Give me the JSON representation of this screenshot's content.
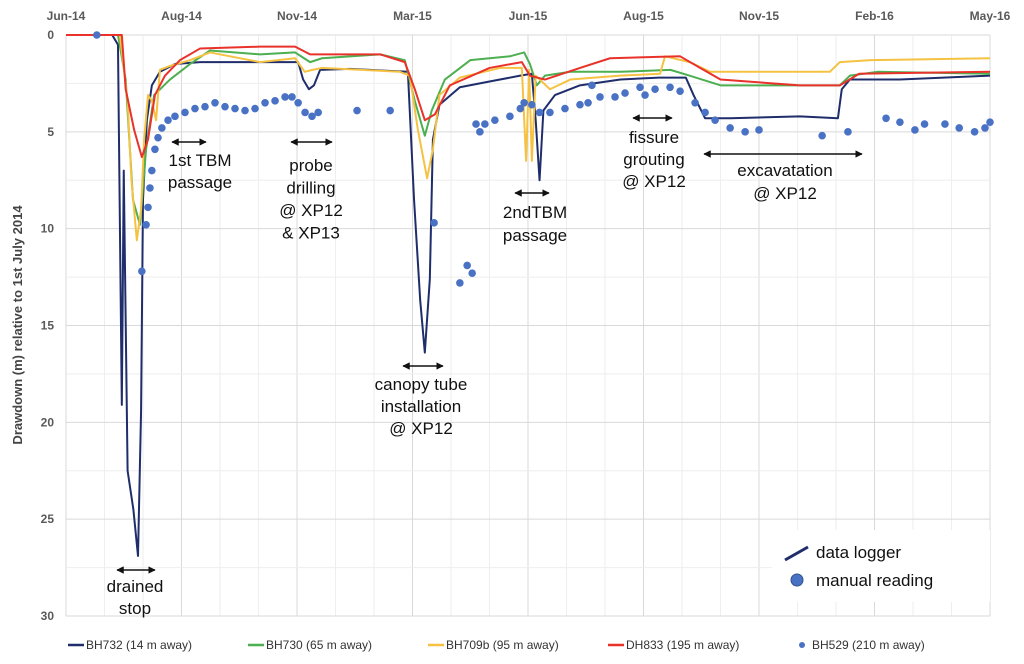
{
  "chart_data": {
    "type": "line",
    "ylabel": "Drawdown (m) relative to 1st July 2014",
    "ylim": [
      0,
      30
    ],
    "y_inverted": true,
    "yticks": [
      "0",
      "5",
      "10",
      "15",
      "20",
      "25",
      "30"
    ],
    "xlim": [
      0,
      24
    ],
    "xticks": [
      {
        "x": 0,
        "label": "Jun-14"
      },
      {
        "x": 3,
        "label": "Aug-14"
      },
      {
        "x": 6,
        "label": "Nov-14"
      },
      {
        "x": 9,
        "label": "Mar-15"
      },
      {
        "x": 12,
        "label": "Jun-15"
      },
      {
        "x": 15,
        "label": "Aug-15"
      },
      {
        "x": 18,
        "label": "Nov-15"
      },
      {
        "x": 21,
        "label": "Feb-16"
      },
      {
        "x": 24,
        "label": "May-16"
      }
    ],
    "grid": true,
    "series": [
      {
        "name": "BH732 (14 m away)",
        "color": "#1f2d6b",
        "kind": "line",
        "points": [
          [
            0,
            0
          ],
          [
            1.2,
            0
          ],
          [
            1.35,
            0.5
          ],
          [
            1.45,
            19.1
          ],
          [
            1.5,
            7
          ],
          [
            1.6,
            22.5
          ],
          [
            1.75,
            24.5
          ],
          [
            1.87,
            26.9
          ],
          [
            1.95,
            19.4
          ],
          [
            2.0,
            8.5
          ],
          [
            2.1,
            4.4
          ],
          [
            2.23,
            2.6
          ],
          [
            2.44,
            1.9
          ],
          [
            2.83,
            1.5
          ],
          [
            3.48,
            1.4
          ],
          [
            4.78,
            1.4
          ],
          [
            6.03,
            1.4
          ],
          [
            6.16,
            2.3
          ],
          [
            6.31,
            2.8
          ],
          [
            6.44,
            2.6
          ],
          [
            6.6,
            1.8
          ],
          [
            7.38,
            1.75
          ],
          [
            8.88,
            1.9
          ],
          [
            9.04,
            8.5
          ],
          [
            9.2,
            13.7
          ],
          [
            9.32,
            16.4
          ],
          [
            9.45,
            12.6
          ],
          [
            9.53,
            5.4
          ],
          [
            9.7,
            3.6
          ],
          [
            10.23,
            2.7
          ],
          [
            11.0,
            2.4
          ],
          [
            11.8,
            2.1
          ],
          [
            12.1,
            2.0
          ],
          [
            12.2,
            4.4
          ],
          [
            12.3,
            7.5
          ],
          [
            12.4,
            3.9
          ],
          [
            12.7,
            3.1
          ],
          [
            13.35,
            2.6
          ],
          [
            14.4,
            2.3
          ],
          [
            15.4,
            2.2
          ],
          [
            16.1,
            2.2
          ],
          [
            16.3,
            3.1
          ],
          [
            16.6,
            4.3
          ],
          [
            17.25,
            4.3
          ],
          [
            19.06,
            4.2
          ],
          [
            20.05,
            4.3
          ],
          [
            20.15,
            2.8
          ],
          [
            20.36,
            2.3
          ],
          [
            21.66,
            2.3
          ],
          [
            24,
            2.1
          ]
        ]
      },
      {
        "name": "BH730 (65 m away)",
        "color": "#4caf50",
        "kind": "line",
        "points": [
          [
            0,
            0
          ],
          [
            1.35,
            0
          ],
          [
            1.55,
            2.3
          ],
          [
            1.74,
            8.5
          ],
          [
            1.92,
            9.8
          ],
          [
            2.08,
            5.9
          ],
          [
            2.29,
            3.1
          ],
          [
            2.7,
            2.3
          ],
          [
            3.22,
            1.5
          ],
          [
            3.74,
            0.8
          ],
          [
            5.04,
            1.0
          ],
          [
            5.95,
            0.9
          ],
          [
            6.34,
            1.4
          ],
          [
            6.65,
            1.2
          ],
          [
            8.16,
            1.0
          ],
          [
            8.8,
            1.3
          ],
          [
            9.06,
            3.4
          ],
          [
            9.32,
            5.2
          ],
          [
            9.5,
            3.9
          ],
          [
            9.84,
            2.3
          ],
          [
            10.5,
            1.3
          ],
          [
            11.53,
            1.1
          ],
          [
            11.9,
            0.9
          ],
          [
            12.05,
            1.5
          ],
          [
            12.23,
            2.6
          ],
          [
            12.44,
            2.1
          ],
          [
            13.1,
            1.9
          ],
          [
            14.4,
            1.9
          ],
          [
            15.7,
            1.8
          ],
          [
            16.2,
            2.1
          ],
          [
            17.0,
            2.6
          ],
          [
            19.06,
            2.6
          ],
          [
            20.1,
            2.6
          ],
          [
            20.36,
            2.1
          ],
          [
            21.1,
            1.9
          ],
          [
            24,
            2.0
          ]
        ]
      },
      {
        "name": "BH709b (95 m away)",
        "color": "#f5c242",
        "kind": "line",
        "points": [
          [
            0,
            0
          ],
          [
            1.4,
            0
          ],
          [
            1.6,
            3.4
          ],
          [
            1.7,
            7.5
          ],
          [
            1.84,
            10.6
          ],
          [
            1.95,
            9.0
          ],
          [
            2.03,
            5.4
          ],
          [
            2.13,
            3.1
          ],
          [
            2.23,
            3.4
          ],
          [
            2.34,
            4.4
          ],
          [
            2.44,
            1.8
          ],
          [
            2.7,
            1.6
          ],
          [
            3.22,
            1.3
          ],
          [
            3.74,
            0.9
          ],
          [
            5.04,
            1.4
          ],
          [
            5.95,
            1.2
          ],
          [
            6.2,
            1.9
          ],
          [
            6.4,
            1.8
          ],
          [
            6.65,
            1.7
          ],
          [
            8.67,
            1.9
          ],
          [
            8.93,
            2.1
          ],
          [
            9.14,
            4.9
          ],
          [
            9.38,
            7.4
          ],
          [
            9.53,
            5.9
          ],
          [
            9.7,
            3.1
          ],
          [
            10.23,
            2.2
          ],
          [
            11.27,
            1.7
          ],
          [
            11.84,
            1.7
          ],
          [
            11.95,
            6.5
          ],
          [
            12.03,
            1.8
          ],
          [
            12.1,
            6.5
          ],
          [
            12.2,
            2.1
          ],
          [
            12.57,
            2.8
          ],
          [
            13.1,
            2.3
          ],
          [
            14.4,
            2.1
          ],
          [
            15.43,
            2.0
          ],
          [
            15.56,
            1.1
          ],
          [
            16.2,
            1.4
          ],
          [
            16.73,
            1.9
          ],
          [
            19.84,
            1.9
          ],
          [
            20.1,
            1.4
          ],
          [
            20.9,
            1.3
          ],
          [
            24,
            1.2
          ]
        ]
      },
      {
        "name": "DH833 (195 m away)",
        "color": "#e8322a",
        "kind": "line",
        "points": [
          [
            0,
            0
          ],
          [
            1.45,
            0
          ],
          [
            1.55,
            2.8
          ],
          [
            1.77,
            4.9
          ],
          [
            1.97,
            6.3
          ],
          [
            2.13,
            5.4
          ],
          [
            2.31,
            3.1
          ],
          [
            2.57,
            2.1
          ],
          [
            2.96,
            1.3
          ],
          [
            3.48,
            0.7
          ],
          [
            5.04,
            0.6
          ],
          [
            5.95,
            0.6
          ],
          [
            6.34,
            1.0
          ],
          [
            8.16,
            1.0
          ],
          [
            8.8,
            1.4
          ],
          [
            9.06,
            2.8
          ],
          [
            9.32,
            4.4
          ],
          [
            9.58,
            4.1
          ],
          [
            9.97,
            2.6
          ],
          [
            11.0,
            1.7
          ],
          [
            11.84,
            1.4
          ],
          [
            12.05,
            2.1
          ],
          [
            12.44,
            2.3
          ],
          [
            13.35,
            1.7
          ],
          [
            14.13,
            1.2
          ],
          [
            15.95,
            1.1
          ],
          [
            16.47,
            1.7
          ],
          [
            17.0,
            2.3
          ],
          [
            19.06,
            2.6
          ],
          [
            20.1,
            2.6
          ],
          [
            20.6,
            2.0
          ],
          [
            24,
            1.9
          ]
        ]
      },
      {
        "name": "BH529 (210 m away)",
        "color": "#4a72c4",
        "kind": "scatter",
        "points": [
          [
            0.8,
            0
          ],
          [
            1.97,
            12.2
          ],
          [
            2.08,
            9.8
          ],
          [
            2.13,
            8.9
          ],
          [
            2.18,
            7.9
          ],
          [
            2.23,
            7.0
          ],
          [
            2.31,
            5.9
          ],
          [
            2.39,
            5.3
          ],
          [
            2.49,
            4.8
          ],
          [
            2.65,
            4.4
          ],
          [
            2.83,
            4.2
          ],
          [
            3.09,
            4.0
          ],
          [
            3.35,
            3.8
          ],
          [
            3.61,
            3.7
          ],
          [
            3.87,
            3.5
          ],
          [
            4.13,
            3.7
          ],
          [
            4.39,
            3.8
          ],
          [
            4.65,
            3.9
          ],
          [
            4.91,
            3.8
          ],
          [
            5.17,
            3.5
          ],
          [
            5.43,
            3.4
          ],
          [
            5.69,
            3.2
          ],
          [
            5.87,
            3.2
          ],
          [
            6.03,
            3.5
          ],
          [
            6.21,
            4.0
          ],
          [
            6.39,
            4.2
          ],
          [
            6.55,
            4.0
          ],
          [
            7.56,
            3.9
          ],
          [
            8.42,
            3.9
          ],
          [
            9.56,
            9.7
          ],
          [
            10.23,
            12.8
          ],
          [
            10.42,
            11.9
          ],
          [
            10.55,
            12.3
          ],
          [
            10.65,
            4.6
          ],
          [
            10.75,
            5.0
          ],
          [
            10.88,
            4.6
          ],
          [
            11.14,
            4.4
          ],
          [
            11.53,
            4.2
          ],
          [
            11.8,
            3.8
          ],
          [
            11.9,
            3.5
          ],
          [
            12.1,
            3.6
          ],
          [
            12.3,
            4.0
          ],
          [
            12.57,
            4.0
          ],
          [
            12.96,
            3.8
          ],
          [
            13.35,
            3.6
          ],
          [
            13.56,
            3.5
          ],
          [
            13.66,
            2.6
          ],
          [
            13.87,
            3.2
          ],
          [
            14.26,
            3.2
          ],
          [
            14.52,
            3.0
          ],
          [
            14.91,
            2.7
          ],
          [
            15.04,
            3.1
          ],
          [
            15.3,
            2.8
          ],
          [
            15.69,
            2.7
          ],
          [
            15.95,
            2.9
          ],
          [
            16.34,
            3.5
          ],
          [
            16.6,
            4.0
          ],
          [
            16.86,
            4.4
          ],
          [
            17.25,
            4.8
          ],
          [
            17.64,
            5.0
          ],
          [
            18.0,
            4.9
          ],
          [
            19.64,
            5.2
          ],
          [
            20.31,
            5.0
          ],
          [
            21.3,
            4.3
          ],
          [
            21.66,
            4.5
          ],
          [
            22.05,
            4.9
          ],
          [
            22.3,
            4.6
          ],
          [
            22.83,
            4.6
          ],
          [
            23.2,
            4.8
          ],
          [
            23.6,
            5.0
          ],
          [
            23.87,
            4.8
          ],
          [
            24,
            4.5
          ]
        ]
      }
    ],
    "annotations": [
      {
        "lines": [
          "drained",
          "stop"
        ]
      },
      {
        "lines": [
          "1st TBM",
          "passage"
        ]
      },
      {
        "lines": [
          "probe",
          "drilling",
          "@ XP12",
          "& XP13"
        ]
      },
      {
        "lines": [
          "canopy tube",
          "installation",
          "@ XP12"
        ]
      },
      {
        "lines": [
          "2ndTBM",
          "passage"
        ]
      },
      {
        "lines": [
          "fissure",
          "grouting",
          "@ XP12"
        ]
      },
      {
        "lines": [
          "excavatation",
          "@ XP12"
        ]
      }
    ],
    "inset_legend": [
      "data logger",
      "manual reading"
    ]
  }
}
